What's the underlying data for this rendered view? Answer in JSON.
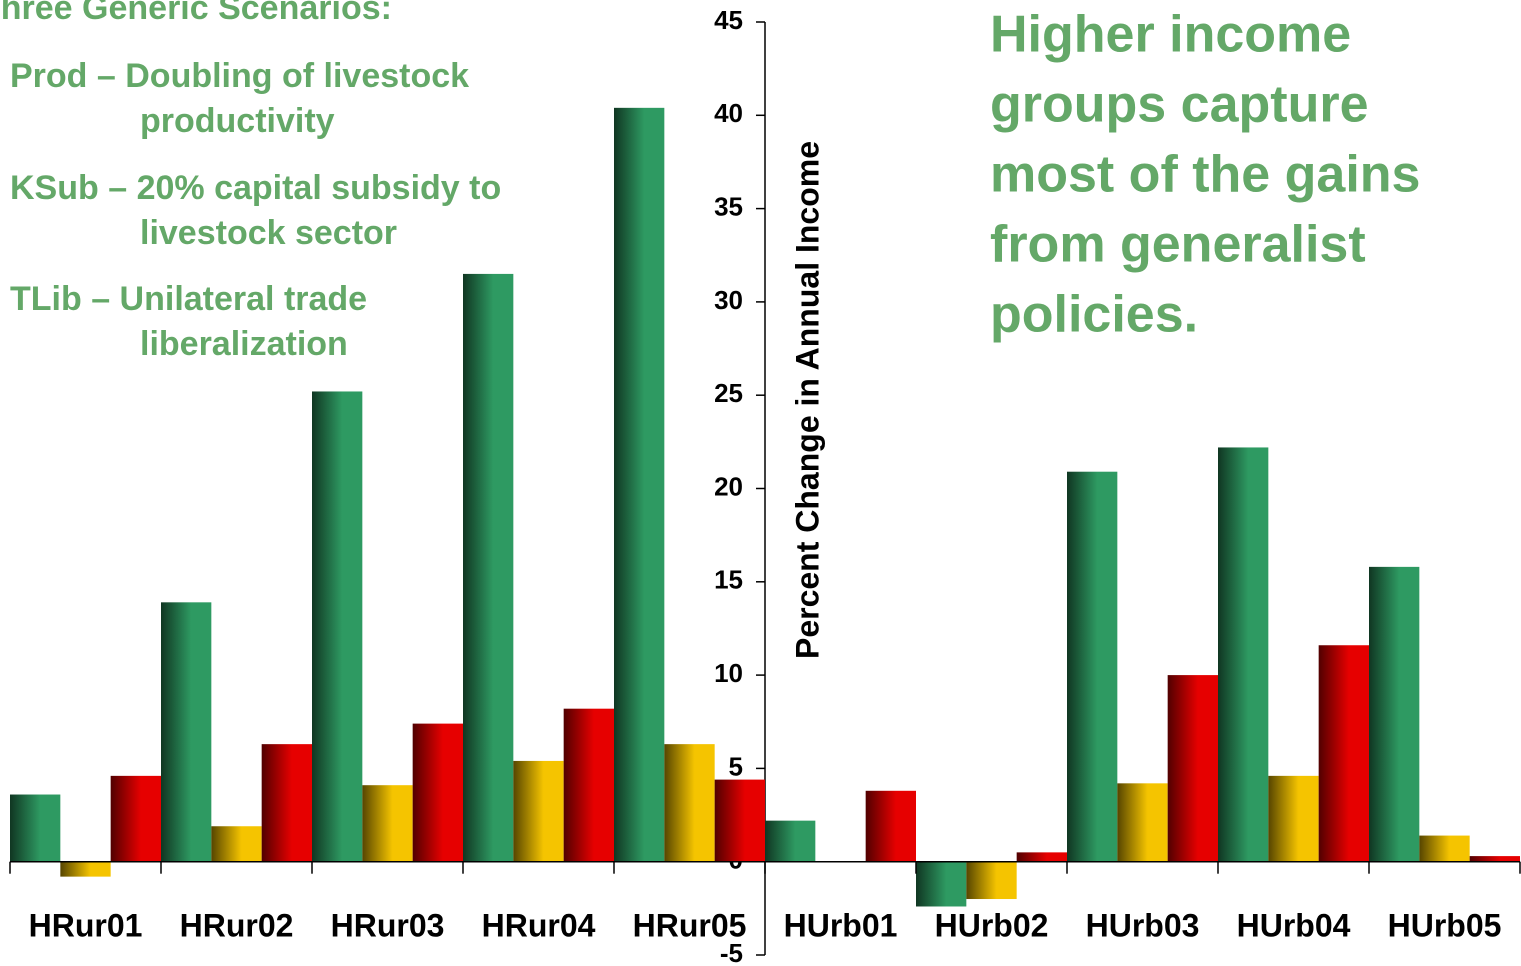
{
  "chart_data": {
    "type": "bar",
    "title": "Three Generic Scenarios:",
    "scenarios": [
      [
        "Prod – Doubling of livestock",
        "productivity"
      ],
      [
        "KSub – 20% capital subsidy to",
        "livestock sector"
      ],
      [
        "TLib – Unilateral trade",
        "liberalization"
      ]
    ],
    "annotation": [
      "Higher income",
      "groups capture",
      "most of the gains",
      "from generalist",
      "policies."
    ],
    "y_label": "Percent Change in Annual Income",
    "categories": [
      "HRur01",
      "HRur02",
      "HRur03",
      "HRur04",
      "HRur05",
      "HUrb01",
      "HUrb02",
      "HUrb03",
      "HUrb04",
      "HUrb05"
    ],
    "series": [
      {
        "color": "#2e9a62",
        "values": [
          3.6,
          13.9,
          25.2,
          31.5,
          40.4,
          2.2,
          -2.4,
          20.9,
          22.2,
          15.8
        ]
      },
      {
        "color": "#f5c400",
        "values": [
          -0.8,
          1.9,
          4.1,
          5.4,
          6.3,
          0,
          -2.0,
          4.2,
          4.6,
          1.4
        ]
      },
      {
        "color": "#e60000",
        "values": [
          4.6,
          6.3,
          7.4,
          8.2,
          4.4,
          3.8,
          0.5,
          10.0,
          11.6,
          0.3
        ]
      }
    ],
    "ylim": [
      -5,
      45
    ],
    "yticks": [
      -5,
      0,
      5,
      10,
      15,
      20,
      25,
      30,
      35,
      40,
      45
    ]
  }
}
